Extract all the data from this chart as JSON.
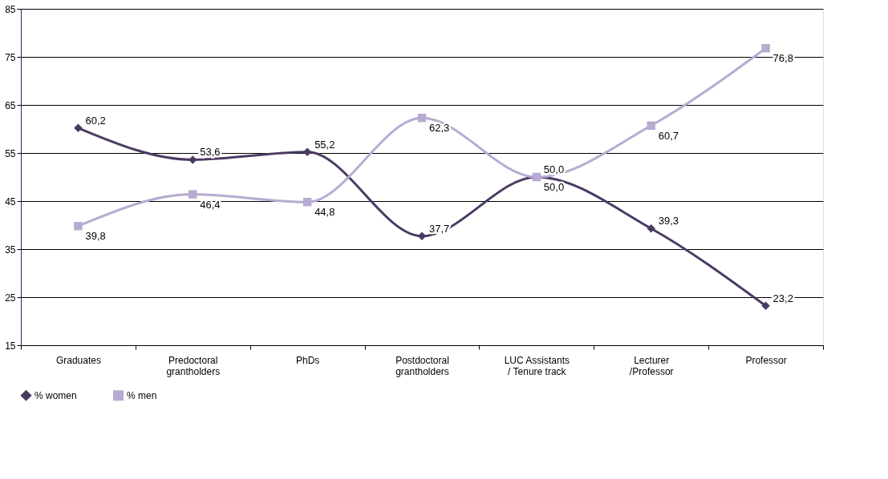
{
  "chart_data": {
    "type": "line",
    "categories": [
      "Graduates",
      "Predoctoral\ngrantholders",
      "PhDs",
      "Postdoctoral\ngrantholders",
      "LUC Assistants\n/ Tenure track",
      "Lecturer\n/Professor",
      "Professor"
    ],
    "series": [
      {
        "name": "% women",
        "color": "#4b3b63",
        "marker": "diamond",
        "values": [
          60.2,
          53.6,
          55.2,
          37.7,
          50.0,
          39.3,
          23.2
        ],
        "value_labels": [
          "60,2",
          "53,6",
          "55,2",
          "37,7",
          "50,0",
          "39,3",
          "23,2"
        ]
      },
      {
        "name": "% men",
        "color": "#b7abd1",
        "marker": "square",
        "values": [
          39.8,
          46.4,
          44.8,
          62.3,
          50.0,
          60.7,
          76.8
        ],
        "value_labels": [
          "39,8",
          "46,4",
          "44,8",
          "62,3",
          "50,0",
          "60,7",
          "76,8"
        ]
      }
    ],
    "ylim": [
      15,
      85
    ],
    "yticks": [
      15,
      25,
      35,
      45,
      55,
      65,
      75,
      85
    ],
    "grid": "y",
    "legend": "bottom",
    "line_style": "solid"
  }
}
